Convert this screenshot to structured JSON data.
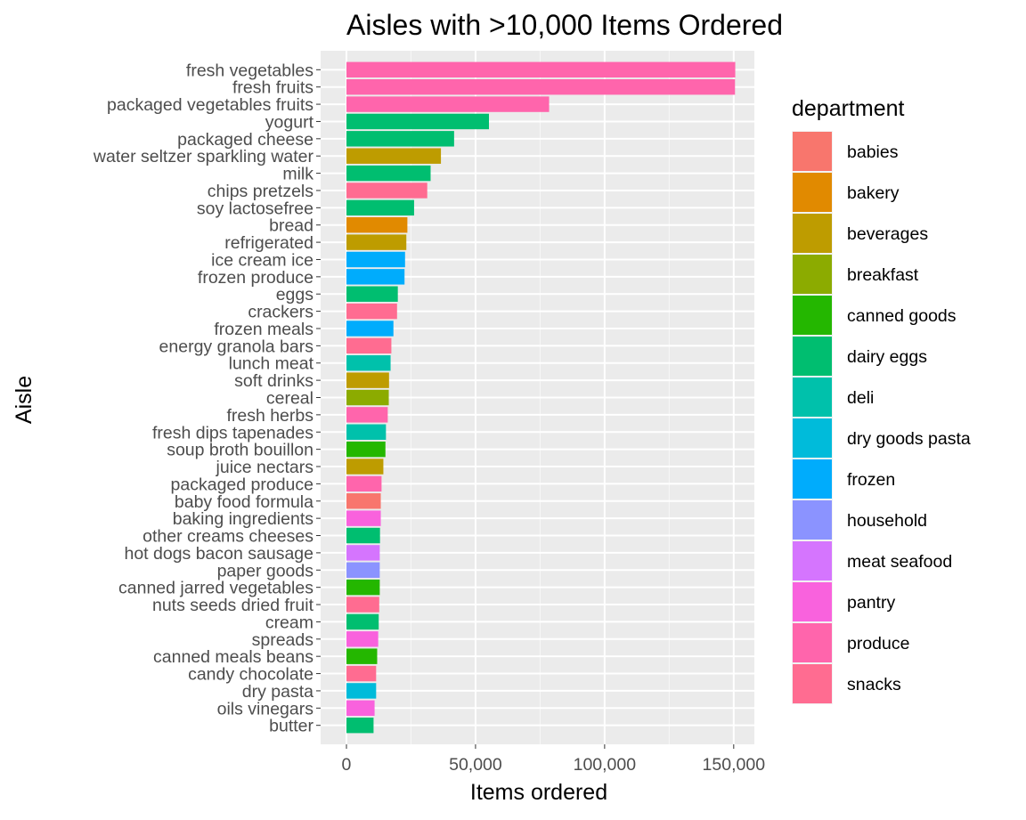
{
  "chart_data": {
    "type": "bar",
    "orientation": "horizontal",
    "title": "Aisles with >10,000 Items Ordered",
    "xlabel": "Items ordered",
    "ylabel": "Aisle",
    "xlim": [
      -10000,
      158000
    ],
    "xticks": [
      0,
      50000,
      100000,
      150000
    ],
    "xtick_labels": [
      "0",
      "50,000",
      "100,000",
      "150,000"
    ],
    "grid": true,
    "legend_position": "right",
    "legend_title": "department",
    "legend": [
      {
        "name": "babies",
        "color": "#F8766D"
      },
      {
        "name": "bakery",
        "color": "#E18A00"
      },
      {
        "name": "beverages",
        "color": "#BE9C00"
      },
      {
        "name": "breakfast",
        "color": "#8CAB00"
      },
      {
        "name": "canned goods",
        "color": "#24B700"
      },
      {
        "name": "dairy eggs",
        "color": "#00BE70"
      },
      {
        "name": "deli",
        "color": "#00C1AB"
      },
      {
        "name": "dry goods pasta",
        "color": "#00BBDA"
      },
      {
        "name": "frozen",
        "color": "#00ACFC"
      },
      {
        "name": "household",
        "color": "#8B93FF"
      },
      {
        "name": "meat seafood",
        "color": "#D575FE"
      },
      {
        "name": "pantry",
        "color": "#F962DD"
      },
      {
        "name": "produce",
        "color": "#FF65AC"
      },
      {
        "name": "snacks",
        "color": "#FF6C91"
      }
    ],
    "bars": [
      {
        "aisle": "fresh vegetables",
        "department": "produce",
        "value": 150600
      },
      {
        "aisle": "fresh fruits",
        "department": "produce",
        "value": 150500
      },
      {
        "aisle": "packaged vegetables fruits",
        "department": "produce",
        "value": 78500
      },
      {
        "aisle": "yogurt",
        "department": "dairy eggs",
        "value": 55200
      },
      {
        "aisle": "packaged cheese",
        "department": "dairy eggs",
        "value": 41700
      },
      {
        "aisle": "water seltzer sparkling water",
        "department": "beverages",
        "value": 36600
      },
      {
        "aisle": "milk",
        "department": "dairy eggs",
        "value": 32600
      },
      {
        "aisle": "chips pretzels",
        "department": "snacks",
        "value": 31300
      },
      {
        "aisle": "soy lactosefree",
        "department": "dairy eggs",
        "value": 26200
      },
      {
        "aisle": "bread",
        "department": "bakery",
        "value": 23600
      },
      {
        "aisle": "refrigerated",
        "department": "beverages",
        "value": 23200
      },
      {
        "aisle": "ice cream ice",
        "department": "frozen",
        "value": 22700
      },
      {
        "aisle": "frozen produce",
        "department": "frozen",
        "value": 22500
      },
      {
        "aisle": "eggs",
        "department": "dairy eggs",
        "value": 19900
      },
      {
        "aisle": "crackers",
        "department": "snacks",
        "value": 19600
      },
      {
        "aisle": "frozen meals",
        "department": "frozen",
        "value": 18200
      },
      {
        "aisle": "energy granola bars",
        "department": "snacks",
        "value": 17400
      },
      {
        "aisle": "lunch meat",
        "department": "deli",
        "value": 17100
      },
      {
        "aisle": "soft drinks",
        "department": "beverages",
        "value": 16500
      },
      {
        "aisle": "cereal",
        "department": "breakfast",
        "value": 16400
      },
      {
        "aisle": "fresh herbs",
        "department": "produce",
        "value": 16000
      },
      {
        "aisle": "fresh dips tapenades",
        "department": "deli",
        "value": 15300
      },
      {
        "aisle": "soup broth bouillon",
        "department": "canned goods",
        "value": 15100
      },
      {
        "aisle": "juice nectars",
        "department": "beverages",
        "value": 14300
      },
      {
        "aisle": "packaged produce",
        "department": "produce",
        "value": 13600
      },
      {
        "aisle": "baby food formula",
        "department": "babies",
        "value": 13300
      },
      {
        "aisle": "baking ingredients",
        "department": "pantry",
        "value": 13300
      },
      {
        "aisle": "other creams cheeses",
        "department": "dairy eggs",
        "value": 13000
      },
      {
        "aisle": "hot dogs bacon sausage",
        "department": "meat seafood",
        "value": 12900
      },
      {
        "aisle": "paper goods",
        "department": "household",
        "value": 12900
      },
      {
        "aisle": "canned jarred vegetables",
        "department": "canned goods",
        "value": 12900
      },
      {
        "aisle": "nuts seeds dried fruit",
        "department": "snacks",
        "value": 12700
      },
      {
        "aisle": "cream",
        "department": "dairy eggs",
        "value": 12500
      },
      {
        "aisle": "spreads",
        "department": "pantry",
        "value": 12300
      },
      {
        "aisle": "canned meals beans",
        "department": "canned goods",
        "value": 11900
      },
      {
        "aisle": "candy chocolate",
        "department": "snacks",
        "value": 11500
      },
      {
        "aisle": "dry pasta",
        "department": "dry goods pasta",
        "value": 11500
      },
      {
        "aisle": "oils vinegars",
        "department": "pantry",
        "value": 10900
      },
      {
        "aisle": "butter",
        "department": "dairy eggs",
        "value": 10500
      }
    ]
  }
}
